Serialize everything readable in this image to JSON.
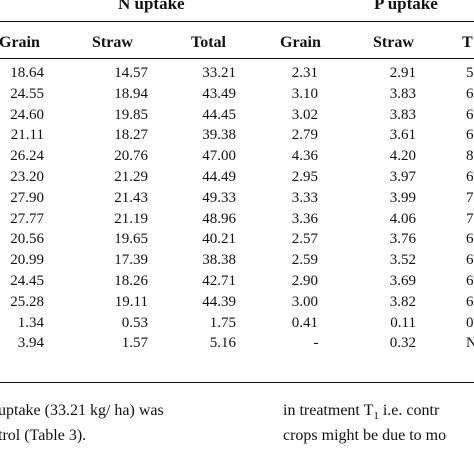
{
  "table": {
    "group_headers": {
      "n_uptake": "N uptake",
      "p_uptake": "P uptake"
    },
    "columns": [
      "Grain",
      "Straw",
      "Total",
      "Grain",
      "Straw",
      "T"
    ],
    "rows": [
      [
        "18.64",
        "14.57",
        "33.21",
        "2.31",
        "2.91",
        "5"
      ],
      [
        "24.55",
        "18.94",
        "43.49",
        "3.10",
        "3.83",
        "6"
      ],
      [
        "24.60",
        "19.85",
        "44.45",
        "3.02",
        "3.83",
        "6"
      ],
      [
        "21.11",
        "18.27",
        "39.38",
        "2.79",
        "3.61",
        "6"
      ],
      [
        "26.24",
        "20.76",
        "47.00",
        "4.36",
        "4.20",
        "8"
      ],
      [
        "23.20",
        "21.29",
        "44.49",
        "2.95",
        "3.97",
        "6"
      ],
      [
        "27.90",
        "21.43",
        "49.33",
        "3.33",
        "3.99",
        "7"
      ],
      [
        "27.77",
        "21.19",
        "48.96",
        "3.36",
        "4.06",
        "7"
      ],
      [
        "20.56",
        "19.65",
        "40.21",
        "2.57",
        "3.76",
        "6"
      ],
      [
        "20.99",
        "17.39",
        "38.38",
        "2.59",
        "3.52",
        "6"
      ],
      [
        "24.45",
        "18.26",
        "42.71",
        "2.90",
        "3.69",
        "6"
      ],
      [
        "25.28",
        "19.11",
        "44.39",
        "3.00",
        "3.82",
        "6"
      ],
      [
        "1.34",
        "0.53",
        "1.75",
        "0.41",
        "0.11",
        "0"
      ],
      [
        "3.94",
        "1.57",
        "5.16",
        "-",
        "0.32",
        "N"
      ]
    ]
  },
  "text": {
    "left_line1": "uptake (33.21 kg/ ha) was",
    "left_line2": "trol (Table 3).",
    "right_line1_a": "in treatment T",
    "right_line1_sub": "1",
    "right_line1_b": " i.e. contr",
    "right_line2": "crops might be due to mo"
  }
}
